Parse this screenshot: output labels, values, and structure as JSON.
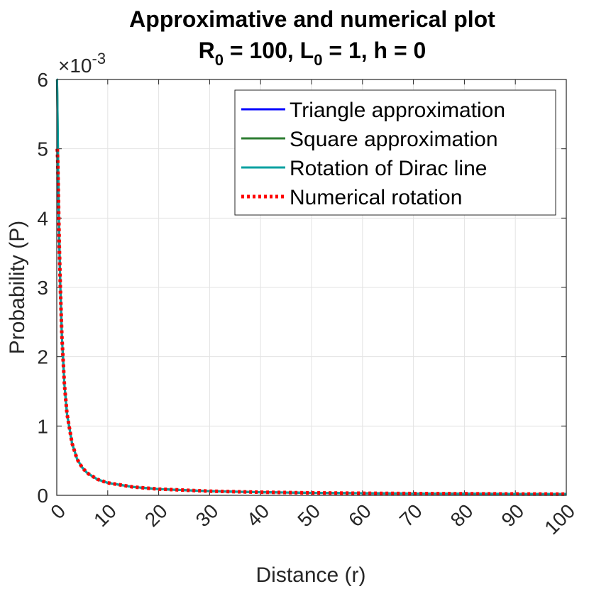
{
  "chart_data": {
    "type": "line",
    "title_line1": "Approximative and numerical plot",
    "title_line2": {
      "r_sym": "R",
      "r_sub": "0",
      "r_val": " = 100, ",
      "l_sym": "L",
      "l_sub": "0",
      "l_val": " = 1, h = 0"
    },
    "xlabel": "Distance (r)",
    "ylabel": "Probability (P)",
    "xlim": [
      0,
      100
    ],
    "ylim": [
      0,
      0.006
    ],
    "y_exponent": {
      "prefix": "×10",
      "power": "-3"
    },
    "x_ticks": [
      "0",
      "10",
      "20",
      "30",
      "40",
      "50",
      "60",
      "70",
      "80",
      "90",
      "100"
    ],
    "x_tick_values": [
      0,
      10,
      20,
      30,
      40,
      50,
      60,
      70,
      80,
      90,
      100
    ],
    "y_ticks": [
      "0",
      "1",
      "2",
      "3",
      "4",
      "5",
      "6"
    ],
    "y_tick_values": [
      0,
      0.001,
      0.002,
      0.003,
      0.004,
      0.005,
      0.006
    ],
    "grid": true,
    "legend_position": "top-right",
    "series": [
      {
        "name": "Triangle approximation",
        "color": "#0000ff",
        "style": "solid",
        "x": [
          0.1,
          0.2,
          0.3,
          0.4,
          0.5,
          0.7,
          1,
          1.5,
          2,
          3,
          4,
          5,
          6,
          8,
          10,
          15,
          20,
          30,
          40,
          50,
          60,
          70,
          80,
          90,
          100
        ],
        "y": [
          0.005,
          0.0048,
          0.0044,
          0.004,
          0.0036,
          0.003,
          0.0023,
          0.0016,
          0.00118,
          0.00075,
          0.00052,
          0.0004,
          0.00032,
          0.00023,
          0.00018,
          0.00012,
          9e-05,
          6e-05,
          4.5e-05,
          3.6e-05,
          3e-05,
          2.6e-05,
          2.3e-05,
          2e-05,
          1.8e-05
        ]
      },
      {
        "name": "Square approximation",
        "color": "#2e7d32",
        "style": "solid",
        "x": [
          0.05,
          0.1,
          0.2,
          0.3,
          0.4,
          0.5,
          0.7,
          1,
          1.5,
          2,
          3,
          4,
          5,
          6,
          8,
          10,
          15,
          20,
          30,
          40,
          50,
          60,
          70,
          80,
          90,
          100
        ],
        "y": [
          0.006,
          0.0058,
          0.0052,
          0.0046,
          0.0041,
          0.0037,
          0.003,
          0.0023,
          0.0016,
          0.00118,
          0.00075,
          0.00052,
          0.0004,
          0.00032,
          0.00023,
          0.00018,
          0.00012,
          9e-05,
          6e-05,
          4.5e-05,
          3.6e-05,
          3e-05,
          2.6e-05,
          2.3e-05,
          2e-05,
          1.8e-05
        ]
      },
      {
        "name": "Rotation of Dirac line",
        "color": "#00a0a0",
        "style": "solid",
        "x": [
          0.02,
          0.05,
          0.1,
          0.2,
          0.3,
          0.4,
          0.5,
          0.7,
          1,
          1.5,
          2,
          3,
          4,
          5,
          6,
          8,
          10,
          15,
          20,
          30,
          40,
          50,
          60,
          70,
          80,
          90,
          100
        ],
        "y": [
          0.006,
          0.006,
          0.0058,
          0.0052,
          0.0046,
          0.0041,
          0.0037,
          0.003,
          0.0023,
          0.0016,
          0.00118,
          0.00075,
          0.00052,
          0.0004,
          0.00032,
          0.00023,
          0.00018,
          0.00012,
          9e-05,
          6e-05,
          4.5e-05,
          3.6e-05,
          3e-05,
          2.6e-05,
          2.3e-05,
          2e-05,
          1.8e-05
        ]
      },
      {
        "name": "Numerical rotation",
        "color": "#ff0000",
        "style": "dotted",
        "x": [
          0.1,
          0.2,
          0.3,
          0.4,
          0.5,
          0.7,
          1,
          1.5,
          2,
          3,
          4,
          5,
          6,
          8,
          10,
          15,
          20,
          30,
          40,
          50,
          60,
          70,
          80,
          90,
          100
        ],
        "y": [
          0.005,
          0.0048,
          0.0044,
          0.004,
          0.0036,
          0.003,
          0.0023,
          0.0016,
          0.00118,
          0.00075,
          0.00052,
          0.0004,
          0.00032,
          0.00023,
          0.00018,
          0.00012,
          9e-05,
          6e-05,
          4.5e-05,
          3.6e-05,
          3e-05,
          2.6e-05,
          2.3e-05,
          2e-05,
          1.8e-05
        ]
      }
    ]
  }
}
